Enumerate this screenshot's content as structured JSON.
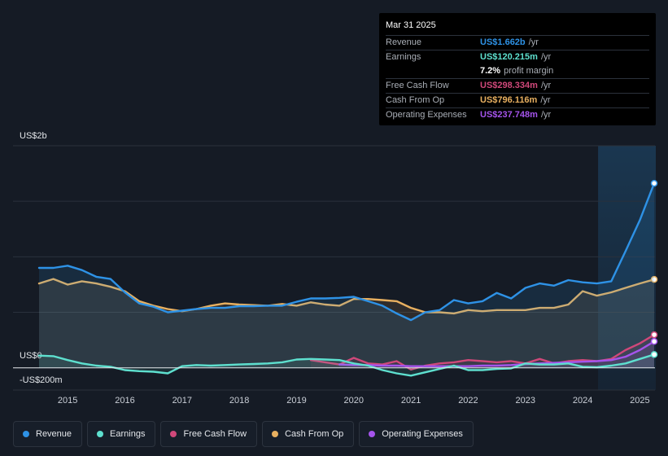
{
  "chart_data": {
    "type": "area",
    "y_unit_labels": {
      "top": "US$2b",
      "zero": "US$0",
      "bottom": "-US$200m"
    },
    "ylim": [
      -200,
      2000
    ],
    "xlim": [
      2014.5,
      2025.25
    ],
    "x_ticks": [
      "2015",
      "2016",
      "2017",
      "2018",
      "2019",
      "2020",
      "2021",
      "2022",
      "2023",
      "2024",
      "2025"
    ],
    "forecast_region_start": 2024.27,
    "series": [
      {
        "name": "Revenue",
        "color": "#2e92e6",
        "points": [
          [
            2014.5,
            900
          ],
          [
            2014.75,
            900
          ],
          [
            2015.0,
            920
          ],
          [
            2015.25,
            880
          ],
          [
            2015.5,
            820
          ],
          [
            2015.75,
            800
          ],
          [
            2016.0,
            680
          ],
          [
            2016.25,
            580
          ],
          [
            2016.5,
            550
          ],
          [
            2016.75,
            500
          ],
          [
            2017.0,
            515
          ],
          [
            2017.25,
            530
          ],
          [
            2017.5,
            540
          ],
          [
            2017.75,
            540
          ],
          [
            2018.0,
            555
          ],
          [
            2018.25,
            555
          ],
          [
            2018.5,
            560
          ],
          [
            2018.75,
            560
          ],
          [
            2019.0,
            595
          ],
          [
            2019.25,
            625
          ],
          [
            2019.5,
            625
          ],
          [
            2019.75,
            630
          ],
          [
            2020.0,
            640
          ],
          [
            2020.25,
            600
          ],
          [
            2020.5,
            560
          ],
          [
            2020.75,
            490
          ],
          [
            2021.0,
            430
          ],
          [
            2021.25,
            500
          ],
          [
            2021.5,
            520
          ],
          [
            2021.75,
            610
          ],
          [
            2022.0,
            580
          ],
          [
            2022.25,
            600
          ],
          [
            2022.5,
            675
          ],
          [
            2022.75,
            625
          ],
          [
            2023.0,
            720
          ],
          [
            2023.25,
            760
          ],
          [
            2023.5,
            740
          ],
          [
            2023.75,
            790
          ],
          [
            2024.0,
            770
          ],
          [
            2024.25,
            760
          ],
          [
            2024.5,
            780
          ],
          [
            2024.75,
            1050
          ],
          [
            2025.0,
            1330
          ],
          [
            2025.25,
            1662
          ]
        ]
      },
      {
        "name": "Earnings",
        "color": "#5ee0cf",
        "points": [
          [
            2014.5,
            110
          ],
          [
            2014.75,
            105
          ],
          [
            2015.0,
            70
          ],
          [
            2015.25,
            40
          ],
          [
            2015.5,
            20
          ],
          [
            2015.75,
            10
          ],
          [
            2016.0,
            -20
          ],
          [
            2016.25,
            -30
          ],
          [
            2016.5,
            -35
          ],
          [
            2016.75,
            -50
          ],
          [
            2017.0,
            15
          ],
          [
            2017.25,
            25
          ],
          [
            2017.5,
            20
          ],
          [
            2017.75,
            25
          ],
          [
            2018.0,
            30
          ],
          [
            2018.25,
            35
          ],
          [
            2018.5,
            40
          ],
          [
            2018.75,
            50
          ],
          [
            2019.0,
            75
          ],
          [
            2019.25,
            80
          ],
          [
            2019.5,
            75
          ],
          [
            2019.75,
            70
          ],
          [
            2020.0,
            40
          ],
          [
            2020.25,
            20
          ],
          [
            2020.5,
            -20
          ],
          [
            2020.75,
            -50
          ],
          [
            2021.0,
            -70
          ],
          [
            2021.25,
            -40
          ],
          [
            2021.5,
            -10
          ],
          [
            2021.75,
            20
          ],
          [
            2022.0,
            -20
          ],
          [
            2022.25,
            -20
          ],
          [
            2022.5,
            -10
          ],
          [
            2022.75,
            -5
          ],
          [
            2023.0,
            40
          ],
          [
            2023.25,
            30
          ],
          [
            2023.5,
            30
          ],
          [
            2023.75,
            40
          ],
          [
            2024.0,
            10
          ],
          [
            2024.25,
            5
          ],
          [
            2024.5,
            20
          ],
          [
            2024.75,
            40
          ],
          [
            2025.0,
            80
          ],
          [
            2025.25,
            120
          ]
        ]
      },
      {
        "name": "Free Cash Flow",
        "color": "#d0487a",
        "points": [
          [
            2019.25,
            70
          ],
          [
            2019.5,
            50
          ],
          [
            2019.75,
            30
          ],
          [
            2020.0,
            90
          ],
          [
            2020.25,
            40
          ],
          [
            2020.5,
            30
          ],
          [
            2020.75,
            60
          ],
          [
            2021.0,
            -15
          ],
          [
            2021.25,
            20
          ],
          [
            2021.5,
            40
          ],
          [
            2021.75,
            50
          ],
          [
            2022.0,
            70
          ],
          [
            2022.25,
            60
          ],
          [
            2022.5,
            50
          ],
          [
            2022.75,
            60
          ],
          [
            2023.0,
            40
          ],
          [
            2023.25,
            80
          ],
          [
            2023.5,
            40
          ],
          [
            2023.75,
            60
          ],
          [
            2024.0,
            70
          ],
          [
            2024.25,
            60
          ],
          [
            2024.5,
            80
          ],
          [
            2024.75,
            160
          ],
          [
            2025.0,
            220
          ],
          [
            2025.25,
            298
          ]
        ]
      },
      {
        "name": "Cash From Op",
        "color": "#e8b060",
        "points": [
          [
            2014.5,
            760
          ],
          [
            2014.75,
            800
          ],
          [
            2015.0,
            750
          ],
          [
            2015.25,
            780
          ],
          [
            2015.5,
            760
          ],
          [
            2015.75,
            730
          ],
          [
            2016.0,
            690
          ],
          [
            2016.25,
            600
          ],
          [
            2016.5,
            560
          ],
          [
            2016.75,
            530
          ],
          [
            2017.0,
            510
          ],
          [
            2017.25,
            530
          ],
          [
            2017.5,
            560
          ],
          [
            2017.75,
            580
          ],
          [
            2018.0,
            570
          ],
          [
            2018.25,
            565
          ],
          [
            2018.5,
            560
          ],
          [
            2018.75,
            575
          ],
          [
            2019.0,
            560
          ],
          [
            2019.25,
            590
          ],
          [
            2019.5,
            570
          ],
          [
            2019.75,
            560
          ],
          [
            2020.0,
            620
          ],
          [
            2020.25,
            620
          ],
          [
            2020.5,
            610
          ],
          [
            2020.75,
            600
          ],
          [
            2021.0,
            540
          ],
          [
            2021.25,
            500
          ],
          [
            2021.5,
            500
          ],
          [
            2021.75,
            490
          ],
          [
            2022.0,
            520
          ],
          [
            2022.25,
            510
          ],
          [
            2022.5,
            520
          ],
          [
            2022.75,
            520
          ],
          [
            2023.0,
            520
          ],
          [
            2023.25,
            540
          ],
          [
            2023.5,
            540
          ],
          [
            2023.75,
            570
          ],
          [
            2024.0,
            690
          ],
          [
            2024.25,
            650
          ],
          [
            2024.5,
            680
          ],
          [
            2024.75,
            720
          ],
          [
            2025.0,
            760
          ],
          [
            2025.25,
            796
          ]
        ]
      },
      {
        "name": "Operating Expenses",
        "color": "#a554ec",
        "points": [
          [
            2019.75,
            30
          ],
          [
            2020.0,
            25
          ],
          [
            2020.25,
            25
          ],
          [
            2020.5,
            20
          ],
          [
            2020.75,
            20
          ],
          [
            2021.0,
            15
          ],
          [
            2021.25,
            15
          ],
          [
            2021.5,
            15
          ],
          [
            2021.75,
            15
          ],
          [
            2022.0,
            15
          ],
          [
            2022.25,
            20
          ],
          [
            2022.5,
            20
          ],
          [
            2022.75,
            25
          ],
          [
            2023.0,
            35
          ],
          [
            2023.25,
            40
          ],
          [
            2023.5,
            45
          ],
          [
            2023.75,
            50
          ],
          [
            2024.0,
            55
          ],
          [
            2024.25,
            60
          ],
          [
            2024.5,
            70
          ],
          [
            2024.75,
            100
          ],
          [
            2025.0,
            160
          ],
          [
            2025.25,
            238
          ]
        ]
      }
    ]
  },
  "tooltip": {
    "date": "Mar 31 2025",
    "rows": [
      {
        "label": "Revenue",
        "value": "US$1.662b",
        "unit": "/yr",
        "color": "#2e92e6"
      },
      {
        "label": "Earnings",
        "value": "US$120.215m",
        "unit": "/yr",
        "color": "#5ee0cf"
      },
      {
        "label": "",
        "value": "7.2%",
        "unit": "profit margin",
        "color": "#ffffff"
      },
      {
        "label": "Free Cash Flow",
        "value": "US$298.334m",
        "unit": "/yr",
        "color": "#d0487a"
      },
      {
        "label": "Cash From Op",
        "value": "US$796.116m",
        "unit": "/yr",
        "color": "#e8b060"
      },
      {
        "label": "Operating Expenses",
        "value": "US$237.748m",
        "unit": "/yr",
        "color": "#a554ec"
      }
    ]
  },
  "legend": [
    {
      "label": "Revenue",
      "color": "#2e92e6"
    },
    {
      "label": "Earnings",
      "color": "#5ee0cf"
    },
    {
      "label": "Free Cash Flow",
      "color": "#d0487a"
    },
    {
      "label": "Cash From Op",
      "color": "#e8b060"
    },
    {
      "label": "Operating Expenses",
      "color": "#a554ec"
    }
  ]
}
